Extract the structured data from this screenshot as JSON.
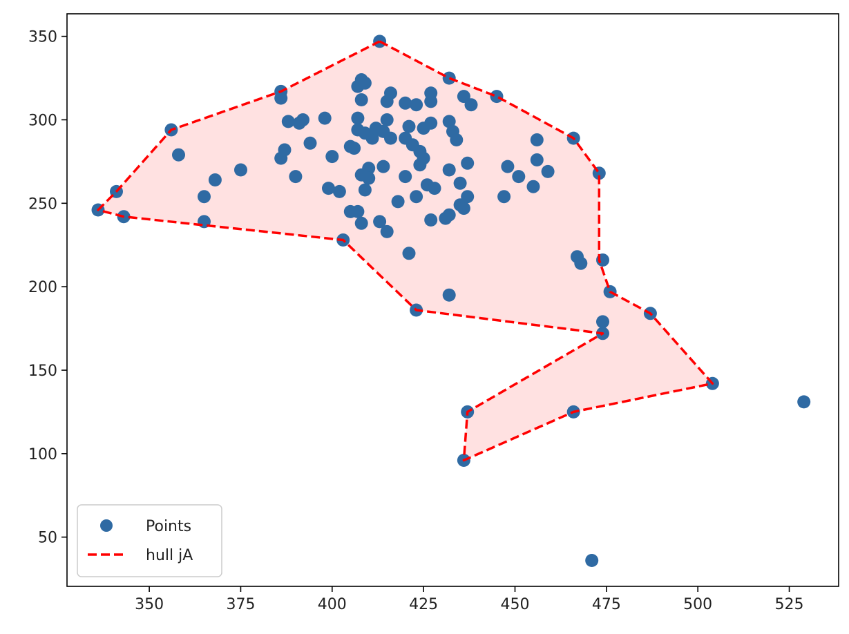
{
  "chart_data": {
    "type": "scatter",
    "title": "",
    "xlabel": "",
    "ylabel": "",
    "xlim": [
      327.5,
      538.5
    ],
    "ylim": [
      20.5,
      363.5
    ],
    "xticks": [
      350,
      375,
      400,
      425,
      450,
      475,
      500,
      525
    ],
    "yticks": [
      50,
      100,
      150,
      200,
      250,
      300,
      350
    ],
    "grid": false,
    "legend_position": "lower left",
    "series": [
      {
        "name": "Points",
        "kind": "scatter",
        "color": "#2f6aa3",
        "points": [
          [
            413,
            347
          ],
          [
            432,
            325
          ],
          [
            445,
            314
          ],
          [
            466,
            289
          ],
          [
            473,
            268
          ],
          [
            474,
            216
          ],
          [
            476,
            197
          ],
          [
            487,
            184
          ],
          [
            504,
            142
          ],
          [
            529,
            131
          ],
          [
            466,
            125
          ],
          [
            436,
            96
          ],
          [
            437,
            125
          ],
          [
            474,
            172
          ],
          [
            474,
            179
          ],
          [
            471,
            36
          ],
          [
            423,
            186
          ],
          [
            432,
            195
          ],
          [
            421,
            220
          ],
          [
            403,
            228
          ],
          [
            365,
            239
          ],
          [
            343,
            242
          ],
          [
            336,
            246
          ],
          [
            341,
            257
          ],
          [
            365,
            254
          ],
          [
            368,
            264
          ],
          [
            358,
            279
          ],
          [
            356,
            294
          ],
          [
            386,
            317
          ],
          [
            386,
            313
          ],
          [
            386,
            277
          ],
          [
            387,
            282
          ],
          [
            390,
            266
          ],
          [
            375,
            270
          ],
          [
            388,
            299
          ],
          [
            391,
            298
          ],
          [
            392,
            300
          ],
          [
            394,
            286
          ],
          [
            398,
            301
          ],
          [
            400,
            278
          ],
          [
            399,
            259
          ],
          [
            402,
            257
          ],
          [
            405,
            284
          ],
          [
            406,
            283
          ],
          [
            405,
            245
          ],
          [
            407,
            245
          ],
          [
            408,
            238
          ],
          [
            413,
            239
          ],
          [
            415,
            233
          ],
          [
            407,
            320
          ],
          [
            408,
            324
          ],
          [
            409,
            322
          ],
          [
            408,
            312
          ],
          [
            407,
            301
          ],
          [
            407,
            294
          ],
          [
            409,
            292
          ],
          [
            411,
            289
          ],
          [
            412,
            295
          ],
          [
            414,
            293
          ],
          [
            415,
            300
          ],
          [
            415,
            311
          ],
          [
            416,
            316
          ],
          [
            416,
            289
          ],
          [
            414,
            272
          ],
          [
            410,
            271
          ],
          [
            410,
            265
          ],
          [
            408,
            267
          ],
          [
            409,
            258
          ],
          [
            418,
            251
          ],
          [
            420,
            310
          ],
          [
            420,
            289
          ],
          [
            420,
            266
          ],
          [
            421,
            296
          ],
          [
            422,
            285
          ],
          [
            423,
            309
          ],
          [
            423,
            254
          ],
          [
            424,
            273
          ],
          [
            424,
            281
          ],
          [
            425,
            277
          ],
          [
            425,
            295
          ],
          [
            426,
            261
          ],
          [
            427,
            311
          ],
          [
            427,
            298
          ],
          [
            427,
            316
          ],
          [
            427,
            240
          ],
          [
            428,
            259
          ],
          [
            431,
            241
          ],
          [
            432,
            299
          ],
          [
            432,
            270
          ],
          [
            432,
            243
          ],
          [
            433,
            293
          ],
          [
            434,
            288
          ],
          [
            435,
            249
          ],
          [
            435,
            262
          ],
          [
            436,
            314
          ],
          [
            436,
            247
          ],
          [
            437,
            254
          ],
          [
            437,
            274
          ],
          [
            438,
            309
          ],
          [
            447,
            254
          ],
          [
            448,
            272
          ],
          [
            451,
            266
          ],
          [
            455,
            260
          ],
          [
            456,
            288
          ],
          [
            456,
            276
          ],
          [
            459,
            269
          ],
          [
            467,
            218
          ],
          [
            468,
            214
          ]
        ]
      },
      {
        "name": "hull jA",
        "kind": "line",
        "style": "dashed",
        "color": "#ff0000",
        "fill": "#ffe1e1",
        "points": [
          [
            413,
            347
          ],
          [
            432,
            325
          ],
          [
            445,
            314
          ],
          [
            466,
            289
          ],
          [
            473,
            268
          ],
          [
            473,
            216
          ],
          [
            476,
            197
          ],
          [
            487,
            184
          ],
          [
            504,
            142
          ],
          [
            466,
            125
          ],
          [
            436,
            96
          ],
          [
            437,
            125
          ],
          [
            474,
            172
          ],
          [
            423,
            186
          ],
          [
            403,
            228
          ],
          [
            343,
            242
          ],
          [
            336,
            246
          ],
          [
            341,
            257
          ],
          [
            356,
            294
          ],
          [
            386,
            317
          ],
          [
            413,
            347
          ]
        ]
      }
    ]
  }
}
